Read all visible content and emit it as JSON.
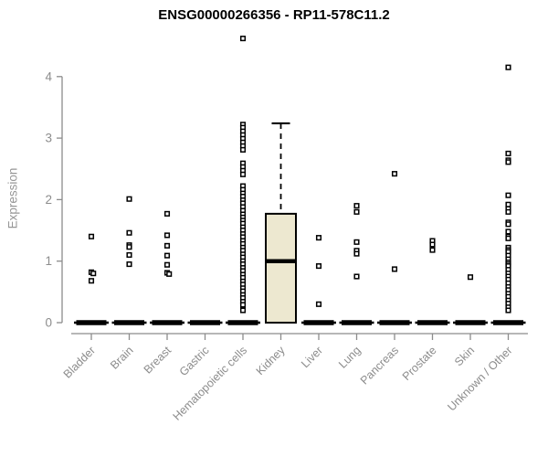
{
  "title": "ENSG00000266356 - RP11-578C11.2",
  "chart_data": {
    "type": "boxplot",
    "title": "ENSG00000266356 - RP11-578C11.2",
    "xlabel": "",
    "ylabel": "Expression",
    "ylim": [
      0,
      4
    ],
    "yticks": [
      "0",
      "1",
      "2",
      "3",
      "4"
    ],
    "grid": false,
    "legend": false,
    "marker": "open-square",
    "colors": {
      "box_fill": "#EDE8D0",
      "box_stroke": "#000000",
      "point": "#000000",
      "axis": "#8c8c8c",
      "title_text": "#000000"
    },
    "categories": [
      "Bladder",
      "Brain",
      "Breast",
      "Gastric",
      "Hematopoietic cells",
      "Kidney",
      "Liver",
      "Lung",
      "Pancreas",
      "Prostate",
      "Skin",
      "Unknown / Other"
    ],
    "boxplots": [
      {
        "category": "Bladder",
        "q1": 0,
        "median": 0,
        "q3": 0,
        "whisker_low": 0,
        "whisker_high": 0
      },
      {
        "category": "Brain",
        "q1": 0,
        "median": 0,
        "q3": 0,
        "whisker_low": 0,
        "whisker_high": 0
      },
      {
        "category": "Breast",
        "q1": 0,
        "median": 0,
        "q3": 0,
        "whisker_low": 0,
        "whisker_high": 0
      },
      {
        "category": "Gastric",
        "q1": 0,
        "median": 0,
        "q3": 0,
        "whisker_low": 0,
        "whisker_high": 0
      },
      {
        "category": "Hematopoietic cells",
        "q1": 0,
        "median": 0,
        "q3": 0,
        "whisker_low": 0,
        "whisker_high": 0
      },
      {
        "category": "Kidney",
        "q1": 0,
        "median": 1.0,
        "q3": 1.77,
        "whisker_low": 0,
        "whisker_high": 3.24
      },
      {
        "category": "Liver",
        "q1": 0,
        "median": 0,
        "q3": 0,
        "whisker_low": 0,
        "whisker_high": 0
      },
      {
        "category": "Lung",
        "q1": 0,
        "median": 0,
        "q3": 0,
        "whisker_low": 0,
        "whisker_high": 0
      },
      {
        "category": "Pancreas",
        "q1": 0,
        "median": 0,
        "q3": 0,
        "whisker_low": 0,
        "whisker_high": 0
      },
      {
        "category": "Prostate",
        "q1": 0,
        "median": 0,
        "q3": 0,
        "whisker_low": 0,
        "whisker_high": 0
      },
      {
        "category": "Skin",
        "q1": 0,
        "median": 0,
        "q3": 0,
        "whisker_low": 0,
        "whisker_high": 0
      },
      {
        "category": "Unknown / Other",
        "q1": 0,
        "median": 0,
        "q3": 0,
        "whisker_low": 0,
        "whisker_high": 0
      }
    ],
    "points": [
      [
        1.4,
        0.82,
        0.8,
        0.68
      ],
      [
        2.01,
        1.46,
        1.26,
        1.23,
        1.1,
        0.95
      ],
      [
        1.77,
        1.42,
        1.25,
        1.09,
        0.94,
        0.81,
        0.79
      ],
      [],
      [
        4.62,
        3.22,
        3.17,
        3.11,
        3.05,
        2.99,
        2.93,
        2.87,
        2.81,
        2.59,
        2.53,
        2.47,
        2.41,
        2.22,
        2.16,
        2.1,
        2.05,
        1.99,
        1.94,
        1.88,
        1.82,
        1.76,
        1.71,
        1.66,
        1.61,
        1.55,
        1.5,
        1.44,
        1.39,
        1.33,
        1.28,
        1.22,
        1.17,
        1.11,
        1.06,
        1.0,
        0.95,
        0.89,
        0.84,
        0.78,
        0.73,
        0.67,
        0.62,
        0.56,
        0.51,
        0.45,
        0.4,
        0.34,
        0.29,
        0.2
      ],
      [],
      [
        1.38,
        0.92,
        0.3
      ],
      [
        1.9,
        1.8,
        1.31,
        1.17,
        1.12,
        0.75
      ],
      [
        2.42,
        0.87
      ],
      [
        1.33,
        1.27,
        1.18
      ],
      [
        0.74
      ],
      [
        4.15,
        2.75,
        2.64,
        2.61,
        2.07,
        1.92,
        1.85,
        1.8,
        1.63,
        1.6,
        1.48,
        1.4,
        1.37,
        1.22,
        1.18,
        1.15,
        1.09,
        1.03,
        0.98,
        0.95,
        0.92,
        0.86,
        0.8,
        0.75,
        0.7,
        0.64,
        0.58,
        0.53,
        0.47,
        0.42,
        0.36,
        0.31,
        0.25,
        0.2
      ]
    ]
  }
}
